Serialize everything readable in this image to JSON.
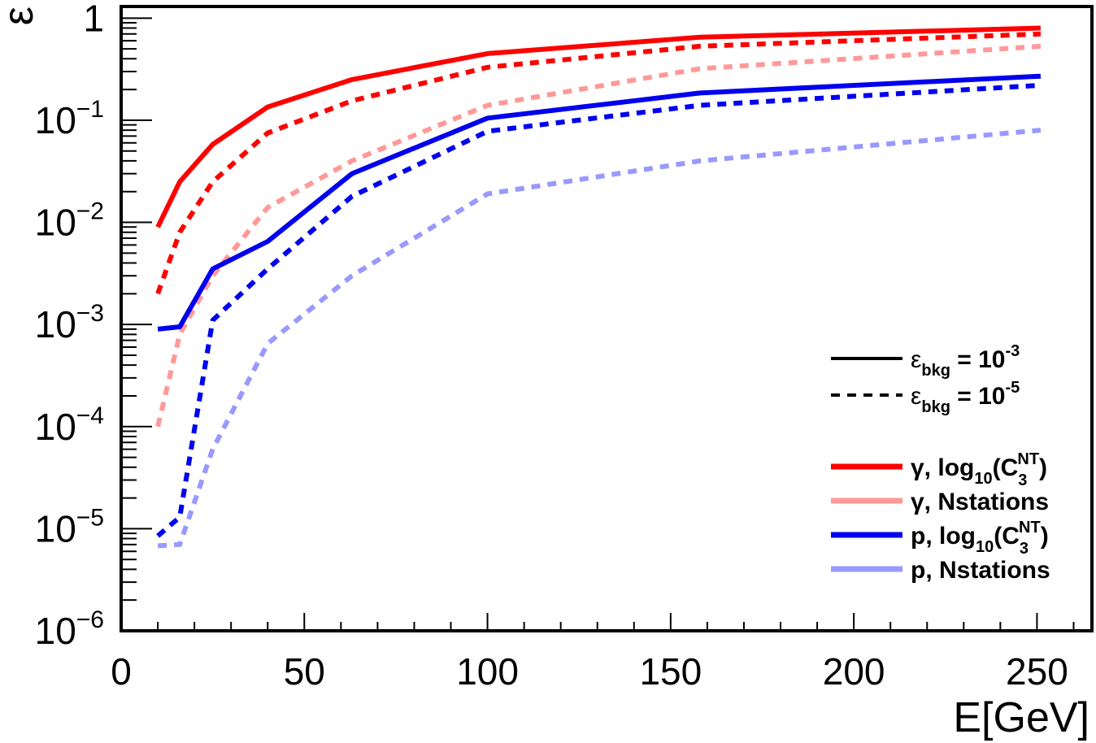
{
  "chart_data": {
    "type": "line",
    "title": "",
    "xlabel": "E[GeV]",
    "ylabel": "ε",
    "xlim": [
      0,
      265
    ],
    "ylim": [
      1e-06,
      1.3
    ],
    "y_scale": "log",
    "x_ticks": [
      0,
      50,
      100,
      150,
      200,
      250
    ],
    "y_ticks": [
      {
        "value": 1,
        "base": "1",
        "exp": ""
      },
      {
        "value": 0.1,
        "base": "10",
        "exp": "−1"
      },
      {
        "value": 0.01,
        "base": "10",
        "exp": "−2"
      },
      {
        "value": 0.001,
        "base": "10",
        "exp": "−3"
      },
      {
        "value": 0.0001,
        "base": "10",
        "exp": "−4"
      },
      {
        "value": 1e-05,
        "base": "10",
        "exp": "−5"
      },
      {
        "value": 1e-06,
        "base": "10",
        "exp": "−6"
      }
    ],
    "grid": false,
    "legend_position": "bottom-right",
    "style_legend": [
      {
        "dash": false,
        "sym": "ε",
        "sub": "bkg",
        "text": " = 10",
        "sup": "-3"
      },
      {
        "dash": true,
        "sym": "ε",
        "sub": "bkg",
        "text": " = 10",
        "sup": "-5"
      }
    ],
    "series_legend": [
      {
        "color": "#ff0000",
        "parts": [
          {
            "t": "γ, log"
          },
          {
            "t": "10",
            "sub": true
          },
          {
            "t": "(C"
          },
          {
            "t": "3",
            "sub": true,
            "sup": "NT"
          },
          {
            "t": ")"
          }
        ]
      },
      {
        "color": "#ff9999",
        "parts": [
          {
            "t": "γ, Nstations"
          }
        ]
      },
      {
        "color": "#0000ee",
        "parts": [
          {
            "t": "p, log"
          },
          {
            "t": "10",
            "sub": true
          },
          {
            "t": "(C"
          },
          {
            "t": "3",
            "sub": true,
            "sup": "NT"
          },
          {
            "t": ")"
          }
        ]
      },
      {
        "color": "#9999ff",
        "parts": [
          {
            "t": "p, Nstations"
          }
        ]
      }
    ],
    "series": [
      {
        "color": "#ff9999",
        "dash": true,
        "x": [
          10,
          16,
          25,
          40,
          63,
          100,
          158,
          251
        ],
        "y": [
          0.0001,
          0.0008,
          0.003,
          0.014,
          0.04,
          0.14,
          0.32,
          0.53
        ]
      },
      {
        "color": "#9999ff",
        "dash": true,
        "x": [
          10,
          16,
          25,
          40,
          63,
          100,
          158,
          251
        ],
        "y": [
          6.8e-06,
          7e-06,
          6e-05,
          0.00065,
          0.003,
          0.019,
          0.04,
          0.08
        ]
      },
      {
        "color": "#ff0000",
        "dash": false,
        "x": [
          10,
          16,
          25,
          40,
          63,
          100,
          158,
          251
        ],
        "y": [
          0.009,
          0.025,
          0.058,
          0.135,
          0.25,
          0.45,
          0.65,
          0.8
        ]
      },
      {
        "color": "#ff0000",
        "dash": true,
        "x": [
          10,
          16,
          25,
          40,
          63,
          100,
          158,
          251
        ],
        "y": [
          0.002,
          0.008,
          0.025,
          0.075,
          0.155,
          0.33,
          0.53,
          0.7
        ]
      },
      {
        "color": "#0000ee",
        "dash": false,
        "x": [
          10,
          16,
          25,
          40,
          63,
          100,
          158,
          251
        ],
        "y": [
          0.0009,
          0.00095,
          0.0035,
          0.0065,
          0.03,
          0.105,
          0.185,
          0.27
        ]
      },
      {
        "color": "#0000ee",
        "dash": true,
        "x": [
          10,
          16,
          25,
          40,
          63,
          100,
          158,
          251
        ],
        "y": [
          8.5e-06,
          1.3e-05,
          0.0011,
          0.0035,
          0.018,
          0.078,
          0.14,
          0.22
        ]
      }
    ]
  }
}
